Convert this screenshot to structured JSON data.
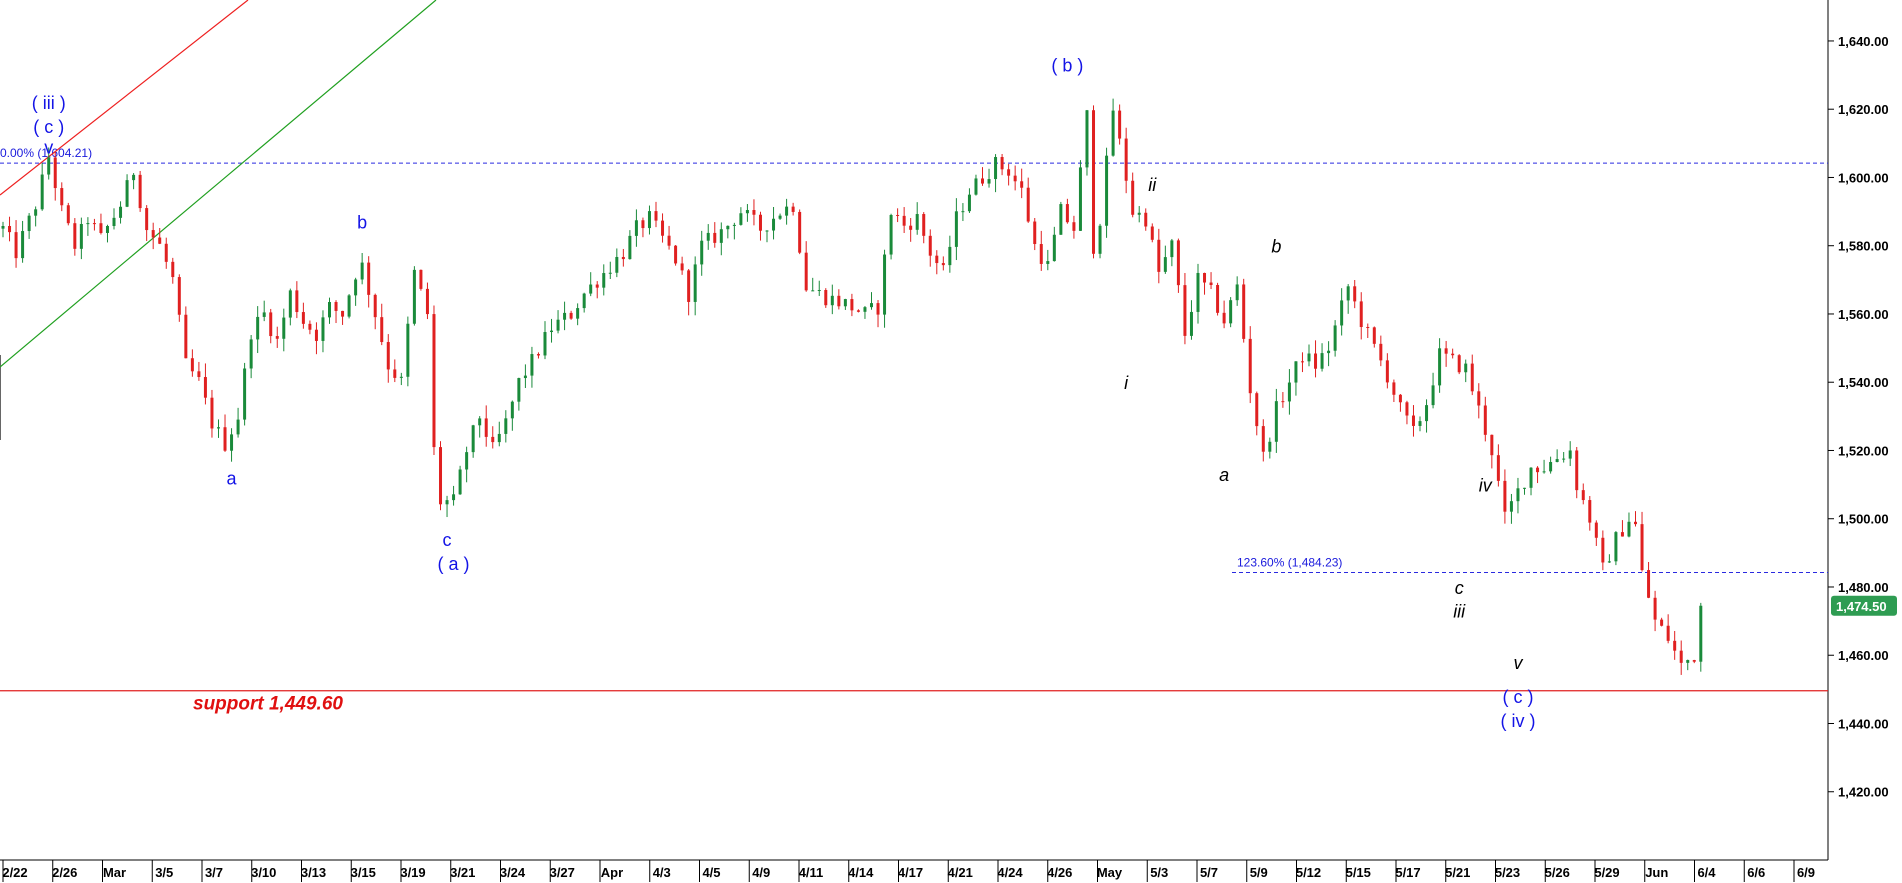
{
  "chart_data": {
    "type": "candlestick",
    "price_axis": {
      "ylim": [
        1400,
        1652
      ],
      "ticks": [
        "1,420.00",
        "1,440.00",
        "1,460.00",
        "1,480.00",
        "1,500.00",
        "1,520.00",
        "1,540.00",
        "1,560.00",
        "1,580.00",
        "1,600.00",
        "1,620.00",
        "1,640.00"
      ],
      "tick_values": [
        1420,
        1440,
        1460,
        1480,
        1500,
        1520,
        1540,
        1560,
        1580,
        1600,
        1620,
        1640
      ]
    },
    "time_axis": {
      "labels": [
        "2/22",
        "2/26",
        "Mar",
        "3/5",
        "3/7",
        "3/10",
        "3/13",
        "3/15",
        "3/19",
        "3/21",
        "3/24",
        "3/27",
        "Apr",
        "4/3",
        "4/5",
        "4/9",
        "4/11",
        "4/14",
        "4/17",
        "4/21",
        "4/24",
        "4/26",
        "May",
        "5/3",
        "5/7",
        "5/9",
        "5/12",
        "5/15",
        "5/17",
        "5/21",
        "5/23",
        "5/26",
        "5/29",
        "Jun",
        "6/4",
        "6/6",
        "6/9"
      ]
    },
    "price_path": [
      [
        0,
        1585
      ],
      [
        2,
        1578
      ],
      [
        5,
        1592
      ],
      [
        7,
        1606
      ],
      [
        9,
        1590
      ],
      [
        11,
        1580
      ],
      [
        13,
        1588
      ],
      [
        15,
        1582
      ],
      [
        18,
        1592
      ],
      [
        20,
        1602
      ],
      [
        22,
        1585
      ],
      [
        24,
        1580
      ],
      [
        26,
        1570
      ],
      [
        28,
        1545
      ],
      [
        30,
        1540
      ],
      [
        32,
        1528
      ],
      [
        34,
        1522
      ],
      [
        36,
        1530
      ],
      [
        38,
        1555
      ],
      [
        40,
        1560
      ],
      [
        42,
        1552
      ],
      [
        44,
        1566
      ],
      [
        46,
        1558
      ],
      [
        48,
        1554
      ],
      [
        50,
        1562
      ],
      [
        52,
        1560
      ],
      [
        54,
        1572
      ],
      [
        55,
        1574
      ],
      [
        57,
        1560
      ],
      [
        59,
        1545
      ],
      [
        61,
        1540
      ],
      [
        63,
        1572
      ],
      [
        65,
        1560
      ],
      [
        66,
        1520
      ],
      [
        67,
        1505
      ],
      [
        69,
        1505
      ],
      [
        71,
        1520
      ],
      [
        73,
        1530
      ],
      [
        75,
        1520
      ],
      [
        77,
        1528
      ],
      [
        79,
        1540
      ],
      [
        81,
        1546
      ],
      [
        84,
        1556
      ],
      [
        87,
        1560
      ],
      [
        89,
        1566
      ],
      [
        91,
        1570
      ],
      [
        93,
        1574
      ],
      [
        95,
        1578
      ],
      [
        97,
        1585
      ],
      [
        99,
        1588
      ],
      [
        101,
        1582
      ],
      [
        103,
        1576
      ],
      [
        105,
        1566
      ],
      [
        107,
        1580
      ],
      [
        110,
        1584
      ],
      [
        113,
        1590
      ],
      [
        116,
        1585
      ],
      [
        119,
        1590
      ],
      [
        121,
        1592
      ],
      [
        123,
        1568
      ],
      [
        126,
        1565
      ],
      [
        129,
        1563
      ],
      [
        132,
        1560
      ],
      [
        134,
        1562
      ],
      [
        136,
        1590
      ],
      [
        138,
        1586
      ],
      [
        140,
        1588
      ],
      [
        142,
        1578
      ],
      [
        144,
        1572
      ],
      [
        146,
        1588
      ],
      [
        148,
        1596
      ],
      [
        150,
        1600
      ],
      [
        152,
        1604
      ],
      [
        154,
        1602
      ],
      [
        156,
        1596
      ],
      [
        158,
        1580
      ],
      [
        160,
        1574
      ],
      [
        162,
        1590
      ],
      [
        164,
        1585
      ],
      [
        166,
        1618
      ],
      [
        167,
        1580
      ],
      [
        168,
        1588
      ],
      [
        170,
        1620
      ],
      [
        171,
        1610
      ],
      [
        173,
        1590
      ],
      [
        175,
        1588
      ],
      [
        177,
        1572
      ],
      [
        179,
        1580
      ],
      [
        181,
        1554
      ],
      [
        183,
        1570
      ],
      [
        185,
        1566
      ],
      [
        187,
        1558
      ],
      [
        189,
        1568
      ],
      [
        191,
        1538
      ],
      [
        193,
        1518
      ],
      [
        195,
        1532
      ],
      [
        197,
        1540
      ],
      [
        199,
        1548
      ],
      [
        201,
        1545
      ],
      [
        203,
        1550
      ],
      [
        206,
        1568
      ],
      [
        208,
        1558
      ],
      [
        210,
        1550
      ],
      [
        212,
        1542
      ],
      [
        214,
        1532
      ],
      [
        216,
        1525
      ],
      [
        218,
        1534
      ],
      [
        220,
        1548
      ],
      [
        222,
        1546
      ],
      [
        224,
        1544
      ],
      [
        226,
        1532
      ],
      [
        228,
        1520
      ],
      [
        230,
        1500
      ],
      [
        232,
        1508
      ],
      [
        234,
        1515
      ],
      [
        236,
        1515
      ],
      [
        238,
        1518
      ],
      [
        240,
        1520
      ],
      [
        241,
        1510
      ],
      [
        243,
        1500
      ],
      [
        245,
        1485
      ],
      [
        247,
        1494
      ],
      [
        249,
        1500
      ],
      [
        250,
        1498
      ],
      [
        251,
        1484
      ],
      [
        253,
        1470
      ],
      [
        255,
        1465
      ],
      [
        257,
        1457
      ],
      [
        259,
        1460
      ],
      [
        260,
        1474
      ]
    ],
    "levels": [
      {
        "label": "0.00% (1,604.21)",
        "value": 1604.21
      },
      {
        "label": "123.60% (1,484.23)",
        "value": 1484.23
      },
      {
        "label": "support 1,449.60",
        "value": 1449.6
      }
    ],
    "last_price": "1,474.50",
    "wave_labels": [
      {
        "text": "( iii )",
        "bar": 7,
        "price": 1620,
        "color": "blue"
      },
      {
        "text": "( c )",
        "bar": 7,
        "price": 1613,
        "color": "blue"
      },
      {
        "text": "v",
        "bar": 7,
        "price": 1607,
        "color": "blue"
      },
      {
        "text": "a",
        "bar": 35,
        "price": 1510,
        "color": "blue"
      },
      {
        "text": "b",
        "bar": 55,
        "price": 1585,
        "color": "blue"
      },
      {
        "text": "c",
        "bar": 68,
        "price": 1492,
        "color": "blue"
      },
      {
        "text": "( a )",
        "bar": 69,
        "price": 1485,
        "color": "blue"
      },
      {
        "text": "( b )",
        "bar": 163,
        "price": 1631,
        "color": "blue"
      },
      {
        "text": "ii",
        "bar": 176,
        "price": 1596,
        "color": "black"
      },
      {
        "text": "i",
        "bar": 172,
        "price": 1538,
        "color": "black"
      },
      {
        "text": "a",
        "bar": 187,
        "price": 1511,
        "color": "black"
      },
      {
        "text": "b",
        "bar": 195,
        "price": 1578,
        "color": "black"
      },
      {
        "text": "iv",
        "bar": 227,
        "price": 1508,
        "color": "black"
      },
      {
        "text": "c",
        "bar": 223,
        "price": 1478,
        "color": "black"
      },
      {
        "text": "iii",
        "bar": 223,
        "price": 1471,
        "color": "black"
      },
      {
        "text": "v",
        "bar": 232,
        "price": 1456,
        "color": "black"
      },
      {
        "text": "( c )",
        "bar": 232,
        "price": 1446,
        "color": "blue"
      },
      {
        "text": "( iv )",
        "bar": 232,
        "price": 1439,
        "color": "blue"
      }
    ],
    "colors": {
      "up": "#1a8a3a",
      "down": "#e02020",
      "fib_line": "#2a2ae0",
      "support_line": "#e02020",
      "channel_upper": "#ee2020",
      "channel_lower": "#20a020",
      "badge": "#2e9c52"
    }
  }
}
